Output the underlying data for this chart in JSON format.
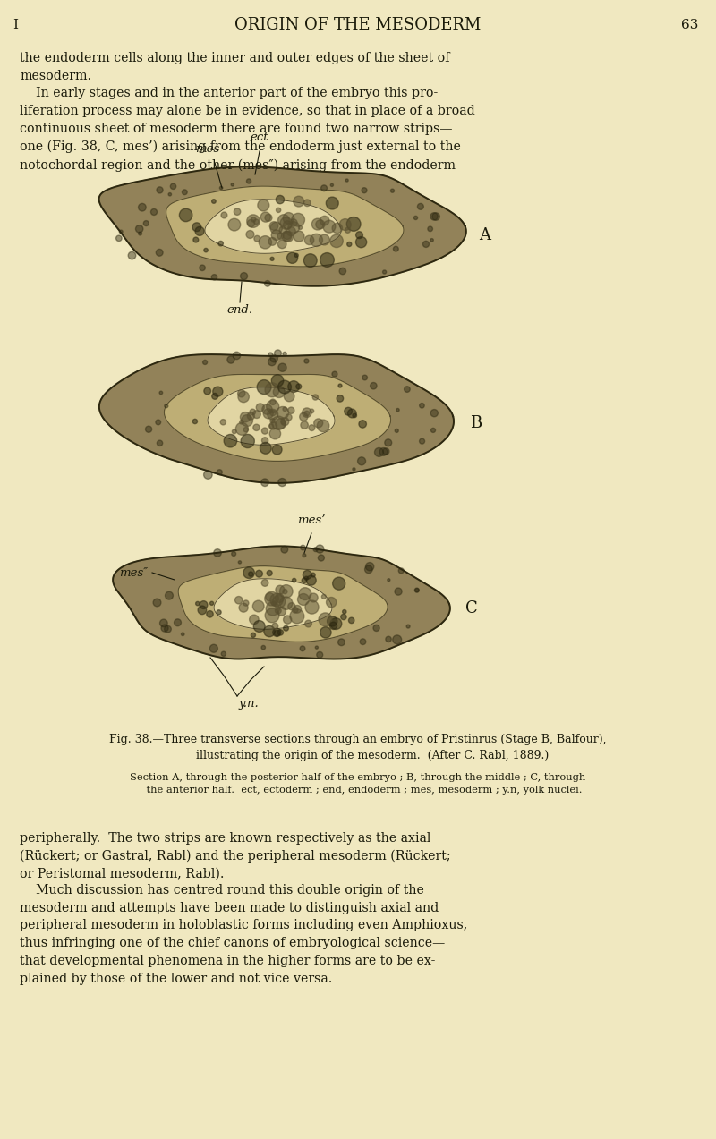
{
  "page_bg_color": "#f0e8c0",
  "text_color": "#1a1a0a",
  "header_text": "ORIGIN OF THE MESODERM",
  "page_number": "63",
  "page_number_left": "I",
  "top_paragraph": "the endoderm cells along the inner and outer edges of the sheet of\nmesoderm.\n    In early stages and in the anterior part of the embryo this pro-\nliferation process may alone be in evidence, so that in place of a broad\ncontinuous sheet of mesoderm there are found two narrow strips—\none (Fig. 38, C, mes’) arising from the endoderm just external to the\nnotochordal region and the other (mes″) arising from the endoderm",
  "bottom_paragraph1": "peripherally.  The two strips are known respectively as the axial\n(Rückert; or Gastral, Rabl) and the peripheral mesoderm (Rückert;\nor Peristomal mesoderm, Rabl).",
  "bottom_paragraph2": "    Much discussion has centred round this double origin of the\nmesoderm and attempts have been made to distinguish axial and\nperipheral mesoderm in holoblastic forms including even Amphioxus,\nthus infringing one of the chief canons of embryological science—\nthat developmental phenomena in the higher forms are to be ex-\nplained by those of the lower and not vice versa.",
  "fig_caption_bold": "Fig. 38.—Three transverse sections through an embryo of Pristinrus (Stage B, Balfour),\n        illustrating the origin of the mesoderm.  (After C. Rabl, 1889.)",
  "fig_caption_small": "Section A, through the posterior half of the embryo ; B, through the middle ; C, through\n    the anterior half.  ect, ectoderm ; end, endoderm ; mes, mesoderm ; y.n, yolk nuclei.",
  "label_A": "A",
  "label_B": "B",
  "label_C": "C",
  "label_mes": "mes",
  "label_ect": "ect",
  "label_end": "end.",
  "label_mes_prime": "mes’",
  "label_mes_double_prime": "mes″",
  "label_yn": "y.n.",
  "dark": "#2d2810",
  "mid_dark": "#5a5030",
  "mid": "#8a7a50",
  "light_tan": "#c5b57a",
  "cream": "#e5d9a8"
}
